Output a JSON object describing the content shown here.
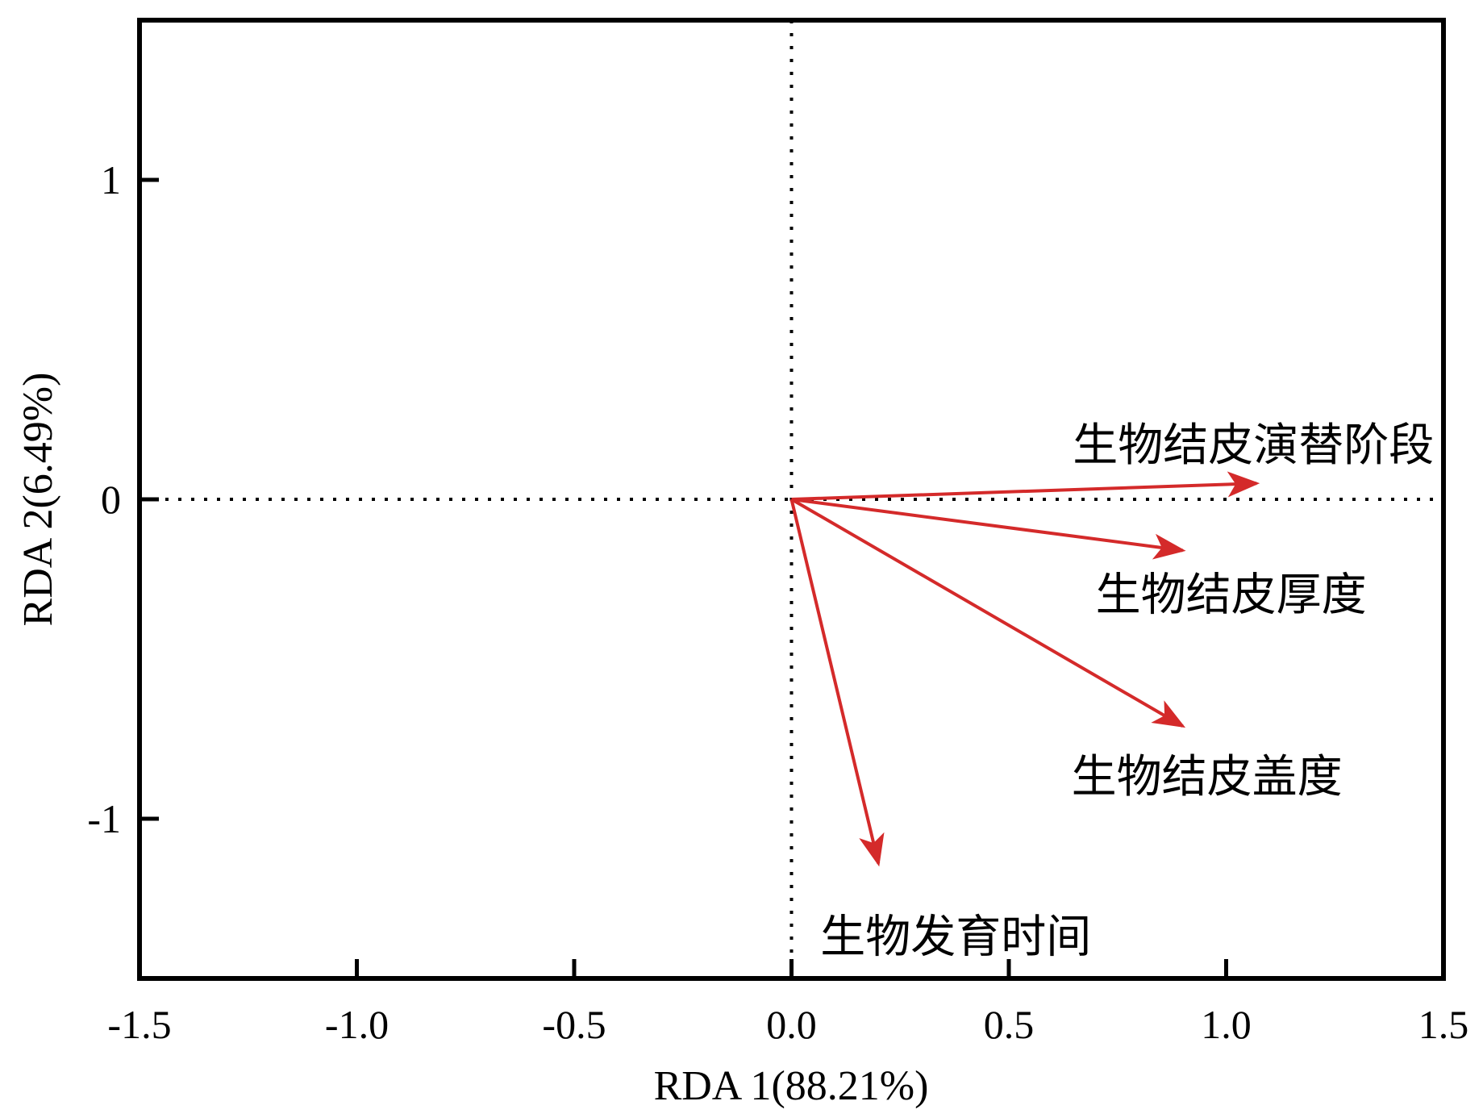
{
  "chart_data": {
    "type": "biplot",
    "title": "",
    "xlabel": "RDA 1(88.21%)",
    "ylabel": "RDA 2(6.49%)",
    "xlim": [
      -1.5,
      1.5
    ],
    "ylim": [
      -1.5,
      1.5
    ],
    "x_ticks": [
      {
        "value": -1.5,
        "label": "-1.5"
      },
      {
        "value": -1.0,
        "label": "-1.0"
      },
      {
        "value": -0.5,
        "label": "-0.5"
      },
      {
        "value": 0.0,
        "label": "0.0"
      },
      {
        "value": 0.5,
        "label": "0.5"
      },
      {
        "value": 1.0,
        "label": "1.0"
      },
      {
        "value": 1.5,
        "label": "1.5"
      }
    ],
    "y_ticks": [
      {
        "value": 1,
        "label": "1"
      },
      {
        "value": 0,
        "label": "0"
      },
      {
        "value": -1,
        "label": "-1"
      }
    ],
    "reference_lines": {
      "x": 0,
      "y": 0,
      "style": "dotted"
    },
    "arrow_color": "#d42a2a",
    "arrows": [
      {
        "name": "生物结皮演替阶段",
        "x": 1.07,
        "y": 0.05
      },
      {
        "name": "生物结皮厚度",
        "x": 0.9,
        "y": -0.16
      },
      {
        "name": "生物结皮盖度",
        "x": 0.9,
        "y": -0.71
      },
      {
        "name": "生物发育时间",
        "x": 0.2,
        "y": -1.14
      }
    ]
  }
}
